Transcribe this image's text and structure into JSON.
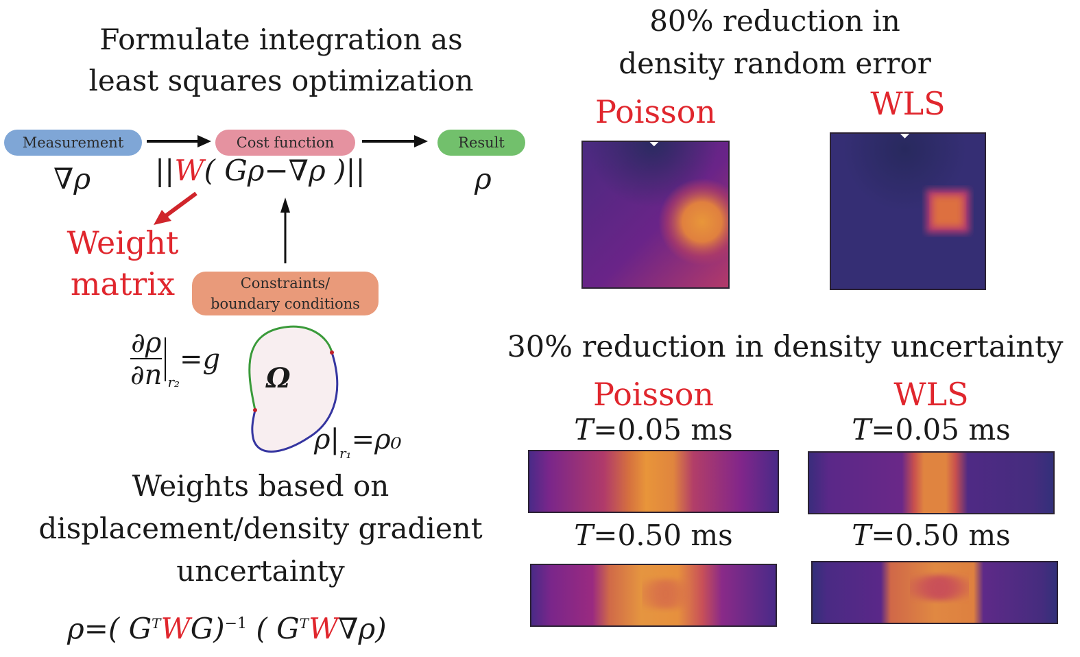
{
  "left": {
    "title_lines": [
      "Formulate integration as",
      "least squares optimization"
    ],
    "flow": {
      "measurement": "Measurement",
      "cost_function": "Cost function",
      "result": "Result",
      "constraints_lines": [
        "Constraints/",
        "boundary conditions"
      ]
    },
    "colors": {
      "measurement": "#7fa6d6",
      "cost_function": "#e592a0",
      "result": "#72c06c",
      "constraints": "#e99a7a",
      "accent_red": "#e0262d",
      "boundary_green": "#3a9a3a",
      "boundary_blue": "#3535a0",
      "domain_fill": "#f8eef0"
    },
    "math": {
      "grad_rho": "∇ρ",
      "cost_open": "||",
      "cost_W": "W",
      "cost_rest": "( Gρ−∇ρ )||",
      "result_rho": "ρ",
      "neumann_num": "∂ρ",
      "neumann_den": "∂n",
      "neumann_sub": "r₂",
      "neumann_rhs": "=g",
      "omega": "Ω",
      "dirichlet_lhs": "ρ|",
      "dirichlet_sub": "r₁",
      "dirichlet_rhs": "=ρ₀",
      "solution_parts": [
        "ρ=( G",
        "T",
        "W",
        "G)",
        "−1",
        " ( G",
        "T",
        "W",
        "∇ρ)"
      ]
    },
    "weight_label_lines": [
      "Weight",
      "matrix"
    ],
    "weights_text_lines": [
      "Weights based on",
      "displacement/density gradient",
      "uncertainty"
    ]
  },
  "right": {
    "top_title_lines": [
      "80% reduction in",
      "density random error"
    ],
    "top_labels": [
      "Poisson",
      "WLS"
    ],
    "bottom_title": "30% reduction in density uncertainty",
    "bottom_labels": [
      "Poisson",
      "WLS"
    ],
    "time_labels": {
      "t1": {
        "var": "T",
        "value": "=0.05 ms"
      },
      "t2": {
        "var": "T",
        "value": "=0.50 ms"
      }
    },
    "colormap": {
      "dark": "#2e2b6a",
      "mid": "#80258a",
      "warm": "#c9405f",
      "hot": "#e58a3a",
      "bright": "#f0a83a"
    }
  }
}
